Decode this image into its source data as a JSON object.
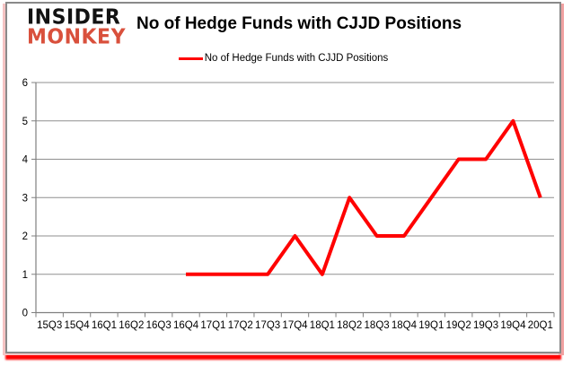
{
  "logo": {
    "line1": "INSIDER",
    "line2": "MONKEY"
  },
  "title": "No of Hedge Funds with CJJD Positions",
  "legend": {
    "label": "No of Hedge Funds with CJJD Positions"
  },
  "colors": {
    "line": "#ff0000",
    "gridline": "#8f8f8f",
    "axis": "#808080",
    "tick": "#808080",
    "label_text": "#000000",
    "frame_border": "#8a8a8a",
    "logo_black": "#121212",
    "logo_accent": "#d9503c",
    "glow_bottom": "#ff0000",
    "glow_side": "#f0a0a0"
  },
  "chart_data": {
    "type": "line",
    "title": "No of Hedge Funds with CJJD Positions",
    "categories": [
      "15Q3",
      "15Q4",
      "16Q1",
      "16Q2",
      "16Q3",
      "16Q4",
      "17Q1",
      "17Q2",
      "17Q3",
      "17Q4",
      "18Q1",
      "18Q2",
      "18Q3",
      "18Q4",
      "19Q1",
      "19Q2",
      "19Q3",
      "19Q4",
      "20Q1"
    ],
    "series": [
      {
        "name": "No of Hedge Funds with CJJD Positions",
        "color": "#ff0000",
        "values": [
          null,
          null,
          null,
          null,
          null,
          1,
          1,
          1,
          1,
          2,
          1,
          3,
          2,
          2,
          3,
          4,
          4,
          5,
          3
        ]
      }
    ],
    "xlabel": "",
    "ylabel": "",
    "ylim": [
      0,
      6
    ],
    "yticks": [
      0,
      1,
      2,
      3,
      4,
      5,
      6
    ],
    "grid": true,
    "legend_position": "top-center"
  }
}
